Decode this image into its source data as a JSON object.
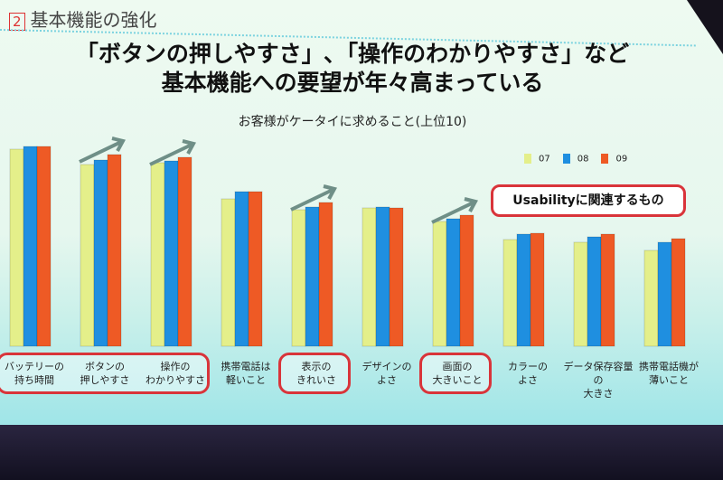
{
  "section": {
    "number": "2",
    "title": "基本機能の強化"
  },
  "headline": {
    "line1": "「ボタンの押しやすさ」､「操作のわかりやすさ」など",
    "line2": "基本機能への要望が年々高まっている"
  },
  "callout": "Usabilityに関連するもの",
  "colors": {
    "07": "#e4ef8a",
    "08": "#1f8fe0",
    "09": "#ee5a25",
    "highlight": "#d9343a"
  },
  "chart_data": {
    "type": "bar",
    "title": "お客様がケータイに求めること(上位10)",
    "xlabel": "",
    "ylabel": "",
    "ylim": [
      0,
      240
    ],
    "legend_position": "top-right",
    "categories": [
      "バッテリーの持ち時間",
      "ボタンの押しやすさ",
      "操作のわかりやすさ",
      "携帯電話は軽いこと",
      "表示のきれいさ",
      "デザインのよさ",
      "画面の大きいこと",
      "カラーのよさ",
      "データ保存容量の大きさ",
      "携帯電話機が薄いこと"
    ],
    "category_lines": [
      [
        "バッテリーの",
        "持ち時間"
      ],
      [
        "ボタンの",
        "押しやすさ"
      ],
      [
        "操作の",
        "わかりやすさ"
      ],
      [
        "携帯電話は",
        "軽いこと"
      ],
      [
        "表示の",
        "きれいさ"
      ],
      [
        "デザインの",
        "よさ"
      ],
      [
        "画面の",
        "大きいこと"
      ],
      [
        "カラーの",
        "よさ"
      ],
      [
        "データ保存容量の",
        "大きさ"
      ],
      [
        "携帯電話機が",
        "薄いこと"
      ]
    ],
    "highlighted": [
      0,
      1,
      2,
      4,
      6
    ],
    "rising_arrows": [
      1,
      2,
      4,
      6
    ],
    "series": [
      {
        "name": "07",
        "values": [
          218,
          201,
          203,
          163,
          151,
          153,
          138,
          118,
          115,
          106
        ]
      },
      {
        "name": "08",
        "values": [
          221,
          206,
          205,
          171,
          154,
          154,
          141,
          124,
          121,
          115
        ]
      },
      {
        "name": "09",
        "values": [
          221,
          212,
          209,
          171,
          159,
          153,
          145,
          125,
          124,
          119
        ]
      }
    ]
  }
}
